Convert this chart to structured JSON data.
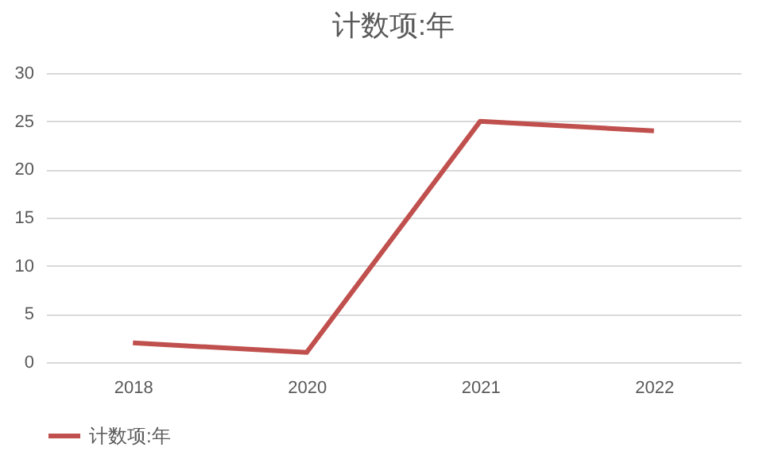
{
  "chart_data": {
    "type": "line",
    "title": "计数项:年",
    "categories": [
      "2018",
      "2020",
      "2021",
      "2022"
    ],
    "series": [
      {
        "name": "计数项:年",
        "color": "#c0504d",
        "values": [
          2,
          1,
          25,
          24
        ]
      }
    ],
    "ylim": [
      0,
      30
    ],
    "yticks": [
      0,
      5,
      10,
      15,
      20,
      25,
      30
    ],
    "grid": "y",
    "legend": "bottom",
    "marker": "none",
    "line_style": "solid"
  }
}
